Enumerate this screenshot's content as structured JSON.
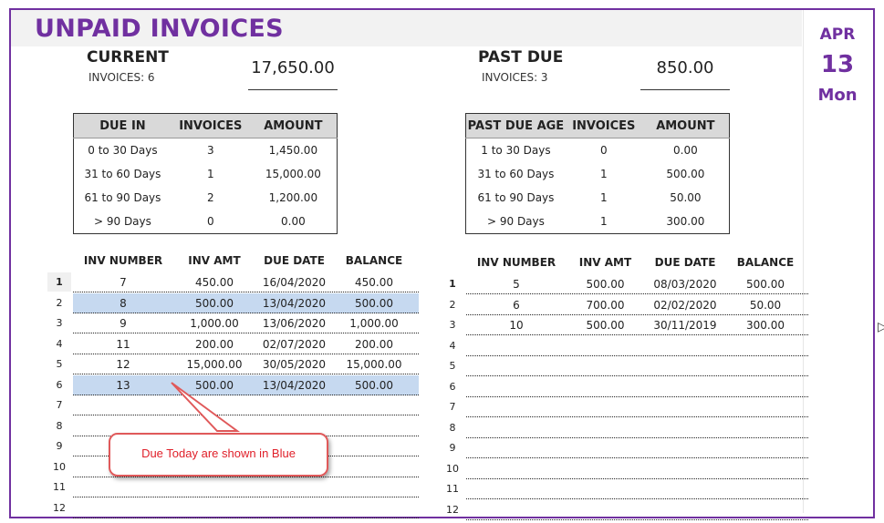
{
  "title": "UNPAID INVOICES",
  "date": {
    "month": "APR",
    "day": "13",
    "weekday": "Mon"
  },
  "current": {
    "heading": "CURRENT",
    "invoices_label": "INVOICES: 6",
    "amount": "17,650.00"
  },
  "past_due": {
    "heading": "PAST DUE",
    "invoices_label": "INVOICES: 3",
    "amount": "850.00"
  },
  "current_aging": {
    "headers": [
      "DUE IN",
      "INVOICES",
      "AMOUNT"
    ],
    "rows": [
      [
        "0 to 30 Days",
        "3",
        "1,450.00"
      ],
      [
        "31 to 60 Days",
        "1",
        "15,000.00"
      ],
      [
        "61 to 90 Days",
        "2",
        "1,200.00"
      ],
      [
        "> 90 Days",
        "0",
        "0.00"
      ]
    ]
  },
  "past_due_aging": {
    "headers": [
      "PAST DUE AGE",
      "INVOICES",
      "AMOUNT"
    ],
    "rows": [
      [
        "1 to 30 Days",
        "0",
        "0.00"
      ],
      [
        "31 to 60 Days",
        "1",
        "500.00"
      ],
      [
        "61 to 90 Days",
        "1",
        "50.00"
      ],
      [
        "> 90 Days",
        "1",
        "300.00"
      ]
    ]
  },
  "list_headers": [
    "INV NUMBER",
    "INV AMT",
    "DUE DATE",
    "BALANCE"
  ],
  "current_list": [
    {
      "n": "1",
      "inv": "7",
      "amt": "450.00",
      "due": "16/04/2020",
      "bal": "450.00",
      "due_today": false
    },
    {
      "n": "2",
      "inv": "8",
      "amt": "500.00",
      "due": "13/04/2020",
      "bal": "500.00",
      "due_today": true
    },
    {
      "n": "3",
      "inv": "9",
      "amt": "1,000.00",
      "due": "13/06/2020",
      "bal": "1,000.00",
      "due_today": false
    },
    {
      "n": "4",
      "inv": "11",
      "amt": "200.00",
      "due": "02/07/2020",
      "bal": "200.00",
      "due_today": false
    },
    {
      "n": "5",
      "inv": "12",
      "amt": "15,000.00",
      "due": "30/05/2020",
      "bal": "15,000.00",
      "due_today": false
    },
    {
      "n": "6",
      "inv": "13",
      "amt": "500.00",
      "due": "13/04/2020",
      "bal": "500.00",
      "due_today": true
    },
    {
      "n": "7",
      "inv": "",
      "amt": "",
      "due": "",
      "bal": "",
      "due_today": false
    },
    {
      "n": "8",
      "inv": "",
      "amt": "",
      "due": "",
      "bal": "",
      "due_today": false
    },
    {
      "n": "9",
      "inv": "",
      "amt": "",
      "due": "",
      "bal": "",
      "due_today": false
    },
    {
      "n": "10",
      "inv": "",
      "amt": "",
      "due": "",
      "bal": "",
      "due_today": false
    },
    {
      "n": "11",
      "inv": "",
      "amt": "",
      "due": "",
      "bal": "",
      "due_today": false
    },
    {
      "n": "12",
      "inv": "",
      "amt": "",
      "due": "",
      "bal": "",
      "due_today": false
    }
  ],
  "past_due_list": [
    {
      "n": "1",
      "inv": "5",
      "amt": "500.00",
      "due": "08/03/2020",
      "bal": "500.00"
    },
    {
      "n": "2",
      "inv": "6",
      "amt": "700.00",
      "due": "02/02/2020",
      "bal": "50.00"
    },
    {
      "n": "3",
      "inv": "10",
      "amt": "500.00",
      "due": "30/11/2019",
      "bal": "300.00"
    },
    {
      "n": "4",
      "inv": "",
      "amt": "",
      "due": "",
      "bal": ""
    },
    {
      "n": "5",
      "inv": "",
      "amt": "",
      "due": "",
      "bal": ""
    },
    {
      "n": "6",
      "inv": "",
      "amt": "",
      "due": "",
      "bal": ""
    },
    {
      "n": "7",
      "inv": "",
      "amt": "",
      "due": "",
      "bal": ""
    },
    {
      "n": "8",
      "inv": "",
      "amt": "",
      "due": "",
      "bal": ""
    },
    {
      "n": "9",
      "inv": "",
      "amt": "",
      "due": "",
      "bal": ""
    },
    {
      "n": "10",
      "inv": "",
      "amt": "",
      "due": "",
      "bal": ""
    },
    {
      "n": "11",
      "inv": "",
      "amt": "",
      "due": "",
      "bal": ""
    },
    {
      "n": "12",
      "inv": "",
      "amt": "",
      "due": "",
      "bal": ""
    }
  ],
  "callout": {
    "text": "Due Today are shown in Blue"
  },
  "colors": {
    "accent": "#7030a0",
    "due_today": "#c6d9f0",
    "callout": "#e0595a"
  },
  "cursor_icon": "cursor-arrow-icon"
}
